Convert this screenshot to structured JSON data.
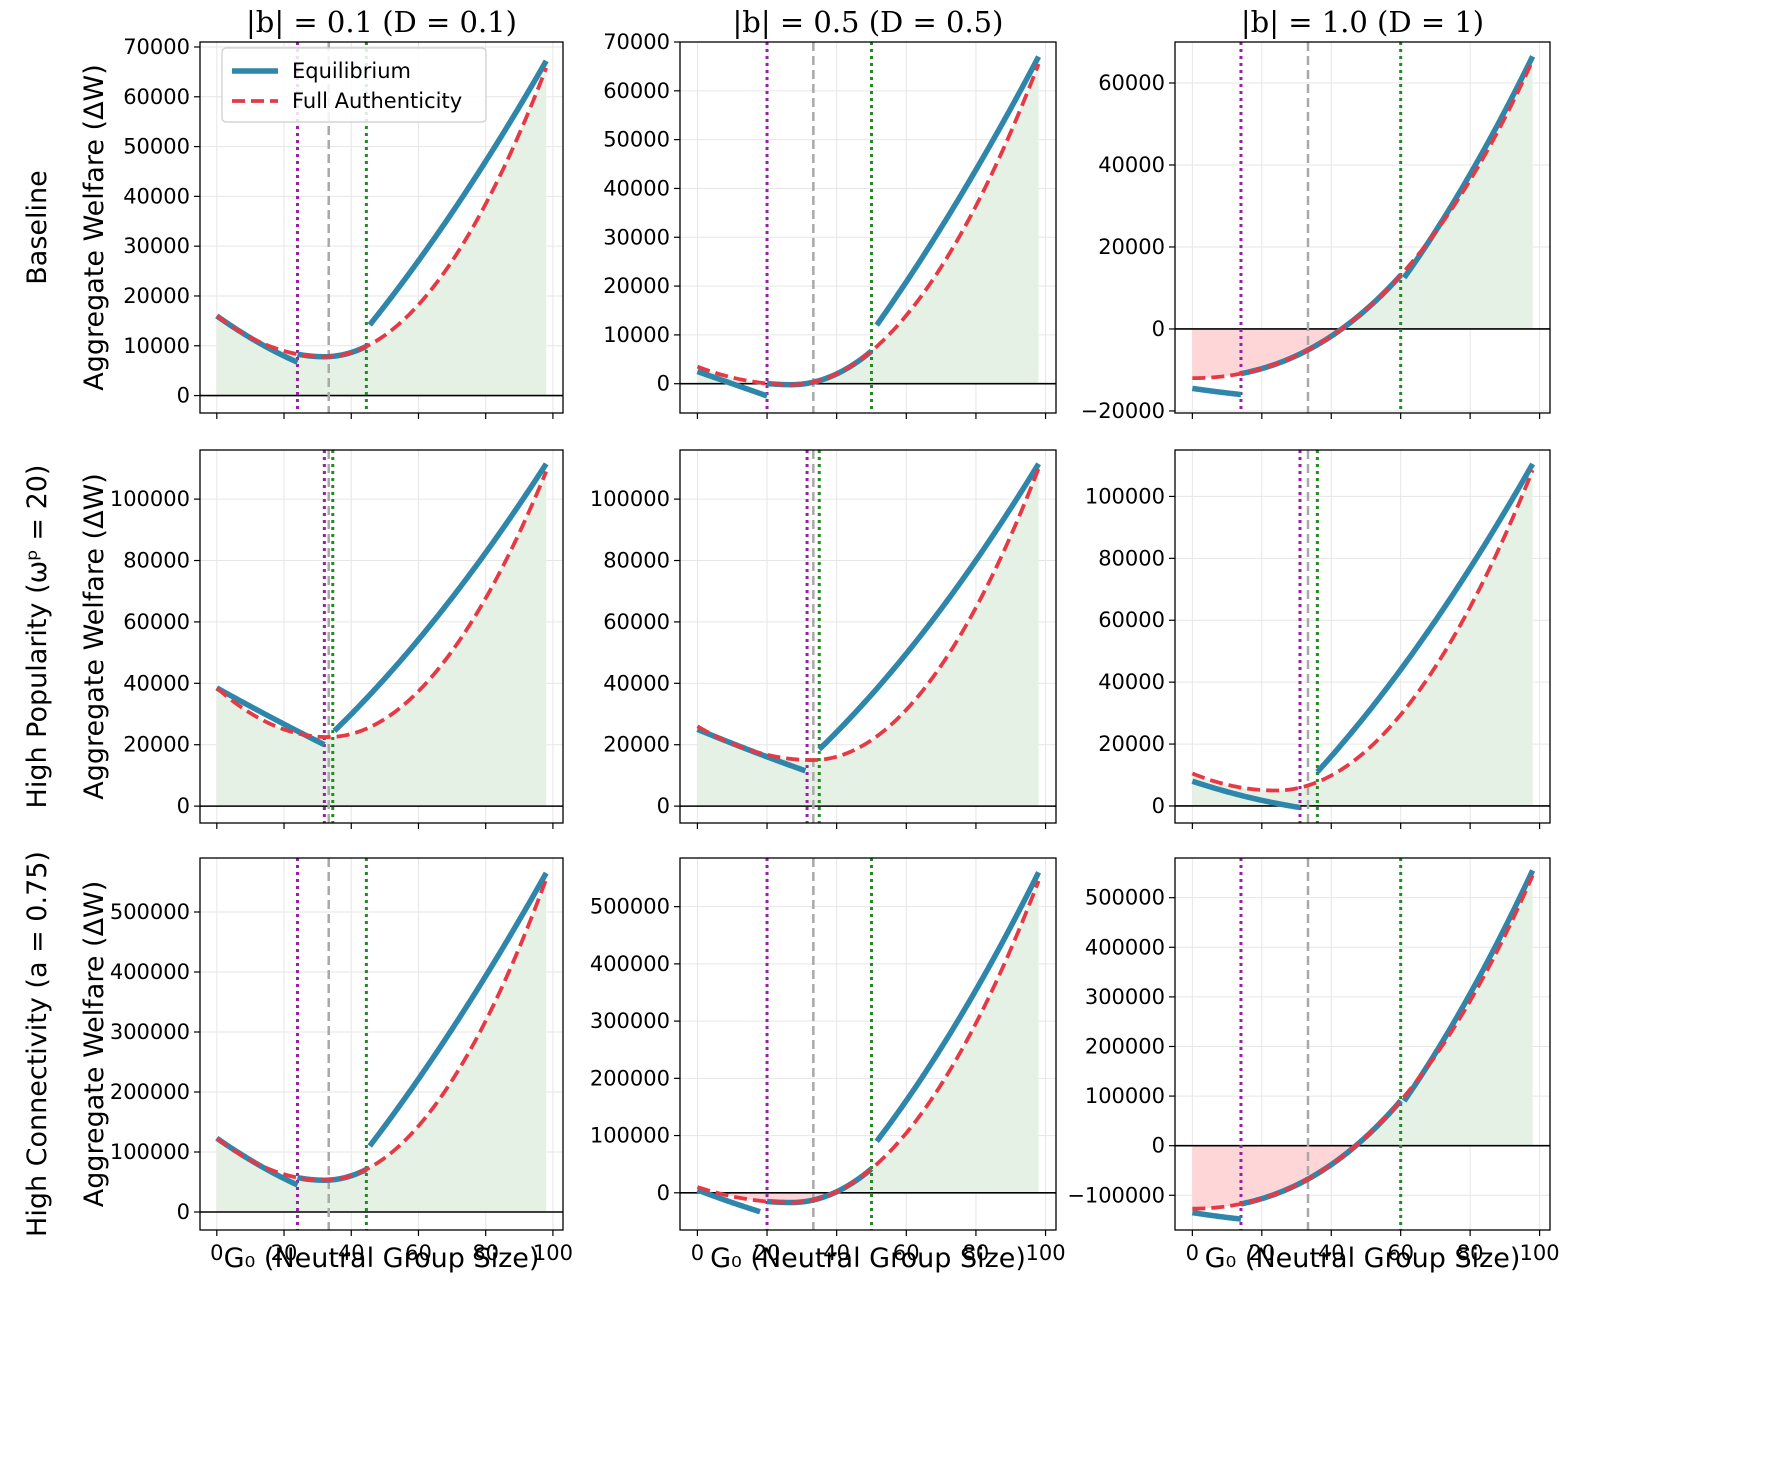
{
  "chart_data": {
    "type": "line",
    "layout": "3x3 grid",
    "columns": [
      {
        "title": "|b| = 0.1 (D = 0.1)"
      },
      {
        "title": "|b| = 0.5 (D = 0.5)"
      },
      {
        "title": "|b| = 1.0 (D = 1)"
      }
    ],
    "rows": [
      {
        "label": "Baseline",
        "ylabel": "Aggregate Welfare (ΔW)"
      },
      {
        "label": "High Popularity (ωᵖ = 20)",
        "ylabel": "Aggregate Welfare (ΔW)"
      },
      {
        "label": "High Connectivity (a = 0.75)",
        "ylabel": "Aggregate Welfare (ΔW)"
      }
    ],
    "xlabel": "G₀ (Neutral Group Size)",
    "xlim": [
      -5,
      103
    ],
    "xticks": [
      0,
      20,
      40,
      60,
      80,
      100
    ],
    "grid": true,
    "legend": {
      "placement": "upper-left",
      "panel": "row 1, column 1"
    },
    "series_names": [
      "Equilibrium",
      "Full Authenticity"
    ],
    "colors": {
      "equilibrium": "#2e86ab",
      "full_authenticity": "#e63946",
      "gain_fill": "#e5f1e5",
      "loss_fill": "#ffd6d8",
      "threshold_purple": "#9a1fa8",
      "threshold_green": "#228b22",
      "midline_gray": "#a9a9a9"
    },
    "panels": [
      {
        "row": 0,
        "col": 0,
        "ylim": [
          -3500,
          71000
        ],
        "yticks": [
          0,
          10000,
          20000,
          30000,
          40000,
          50000,
          60000,
          70000
        ],
        "vlines": {
          "purple": 24,
          "gray": 33.3,
          "green": 44.5
        },
        "full": {
          "A": 16000,
          "m": 32,
          "v": 7800,
          "yE": 65800
        },
        "eq": [
          {
            "x0": 0,
            "x1": 24,
            "y0": 16000,
            "mid": 10800,
            "y1": 6700
          },
          {
            "x0": 24,
            "x1": 44.5,
            "follow": true
          },
          {
            "x0": 45.5,
            "x1": 98,
            "y0": 14200,
            "mid": 38500,
            "y1": 67200
          }
        ]
      },
      {
        "row": 0,
        "col": 1,
        "ylim": [
          -6000,
          70000
        ],
        "yticks": [
          0,
          10000,
          20000,
          30000,
          40000,
          50000,
          60000,
          70000
        ],
        "vlines": {
          "purple": 20,
          "gray": 33.3,
          "green": 50
        },
        "full": {
          "A": 3500,
          "m": 27,
          "v": -200,
          "yE": 65500
        },
        "eq": [
          {
            "x0": 0,
            "x1": 20,
            "y0": 2500,
            "mid": 0,
            "y1": -2500
          },
          {
            "x0": 20,
            "x1": 50,
            "follow": true
          },
          {
            "x0": 51.5,
            "x1": 98,
            "y0": 12000,
            "mid": 37500,
            "y1": 67000
          }
        ]
      },
      {
        "row": 0,
        "col": 2,
        "ylim": [
          -20500,
          70000
        ],
        "yticks": [
          -20000,
          0,
          20000,
          40000,
          60000
        ],
        "vlines": {
          "purple": 14,
          "gray": 33.3,
          "green": 60
        },
        "full": {
          "A": -12000,
          "m": 0,
          "v": -12000,
          "yE": 65500
        },
        "eq": [
          {
            "x0": 0,
            "x1": 14,
            "y0": -14500,
            "mid": -15300,
            "y1": -16000
          },
          {
            "x0": 14,
            "x1": 60,
            "follow": true
          },
          {
            "x0": 61,
            "x1": 98,
            "y0": 12500,
            "mid": 37000,
            "y1": 66500
          }
        ]
      },
      {
        "row": 1,
        "col": 0,
        "ylim": [
          -5500,
          116000
        ],
        "yticks": [
          0,
          20000,
          40000,
          60000,
          80000,
          100000
        ],
        "vlines": {
          "purple": 32,
          "gray": 33.3,
          "green": 34.5
        },
        "full": {
          "A": 38500,
          "m": 33,
          "v": 22500,
          "yE": 109000
        },
        "eq": [
          {
            "x0": 0,
            "x1": 32,
            "y0": 38500,
            "mid": 29000,
            "y1": 20000
          },
          {
            "x0": 35,
            "x1": 98,
            "y0": 24500,
            "mid": 63000,
            "y1": 111500
          }
        ]
      },
      {
        "row": 1,
        "col": 1,
        "ylim": [
          -5500,
          116000
        ],
        "yticks": [
          0,
          20000,
          40000,
          60000,
          80000,
          100000
        ],
        "vlines": {
          "purple": 31.5,
          "gray": 33.3,
          "green": 35
        },
        "full": {
          "A": 26000,
          "m": 33,
          "v": 15000,
          "yE": 110000
        },
        "eq": [
          {
            "x0": 0,
            "x1": 31,
            "y0": 25000,
            "mid": 18000,
            "y1": 11500
          },
          {
            "x0": 35,
            "x1": 98,
            "y0": 18500,
            "mid": 59000,
            "y1": 111500
          }
        ]
      },
      {
        "row": 1,
        "col": 2,
        "ylim": [
          -5500,
          115000
        ],
        "yticks": [
          0,
          20000,
          40000,
          60000,
          80000,
          100000
        ],
        "vlines": {
          "purple": 31,
          "gray": 33.3,
          "green": 36
        },
        "full": {
          "A": 10500,
          "m": 24,
          "v": 5000,
          "yE": 108500
        },
        "eq": [
          {
            "x0": 0,
            "x1": 31,
            "y0": 8000,
            "mid": 3000,
            "y1": -500
          },
          {
            "x0": 36,
            "x1": 98,
            "y0": 11000,
            "mid": 55000,
            "y1": 110500
          }
        ]
      },
      {
        "row": 2,
        "col": 0,
        "ylim": [
          -30000,
          590000
        ],
        "yticks": [
          0,
          100000,
          200000,
          300000,
          400000,
          500000
        ],
        "vlines": {
          "purple": 24,
          "gray": 33.3,
          "green": 44.5
        },
        "full": {
          "A": 123000,
          "m": 32,
          "v": 53000,
          "yE": 555000
        },
        "eq": [
          {
            "x0": 0,
            "x1": 24,
            "y0": 123000,
            "mid": 80000,
            "y1": 45000
          },
          {
            "x0": 24,
            "x1": 44.5,
            "follow": true
          },
          {
            "x0": 45.5,
            "x1": 98,
            "y0": 110000,
            "mid": 320000,
            "y1": 565000
          }
        ]
      },
      {
        "row": 2,
        "col": 1,
        "ylim": [
          -65000,
          585000
        ],
        "yticks": [
          0,
          100000,
          200000,
          300000,
          400000,
          500000
        ],
        "vlines": {
          "purple": 20,
          "gray": 33.3,
          "green": 50
        },
        "full": {
          "A": 10000,
          "m": 27,
          "v": -17000,
          "yE": 545000
        },
        "eq": [
          {
            "x0": 0,
            "x1": 18,
            "y0": 5000,
            "mid": -15000,
            "y1": -33000
          },
          {
            "x0": 20,
            "x1": 50,
            "follow": true
          },
          {
            "x0": 51.5,
            "x1": 98,
            "y0": 90000,
            "mid": 300000,
            "y1": 560000
          }
        ]
      },
      {
        "row": 2,
        "col": 2,
        "ylim": [
          -170000,
          580000
        ],
        "yticks": [
          -100000,
          0,
          100000,
          200000,
          300000,
          400000,
          500000
        ],
        "vlines": {
          "purple": 14,
          "gray": 33.3,
          "green": 60
        },
        "full": {
          "A": -127000,
          "m": 0,
          "v": -127000,
          "yE": 545000
        },
        "eq": [
          {
            "x0": 0,
            "x1": 14,
            "y0": -135000,
            "mid": -142000,
            "y1": -148000
          },
          {
            "x0": 14,
            "x1": 60,
            "follow": true
          },
          {
            "x0": 61,
            "x1": 98,
            "y0": 90000,
            "mid": 300000,
            "y1": 555000
          }
        ]
      }
    ]
  }
}
